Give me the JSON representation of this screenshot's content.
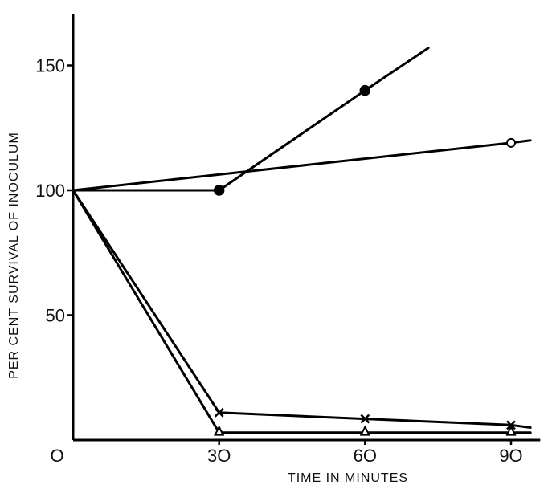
{
  "chart_data": {
    "type": "line",
    "xlabel": "TIME IN MINUTES",
    "ylabel": "PER CENT SURVIVAL OF INOCULUM",
    "xlim": [
      0,
      96
    ],
    "ylim": [
      0,
      170
    ],
    "x_ticks": [
      0,
      30,
      60,
      90
    ],
    "x_tick_labels": [
      "O",
      "3O",
      "6O",
      "9O"
    ],
    "y_ticks": [
      50,
      100,
      150
    ],
    "y_tick_labels": [
      "50",
      "100",
      "150"
    ],
    "grid": false,
    "legend": "none",
    "series": [
      {
        "marker": "filled-circle",
        "x": [
          0,
          30,
          60,
          73
        ],
        "y": [
          100,
          100,
          140,
          157
        ],
        "marked_x": [
          30,
          60
        ]
      },
      {
        "marker": "open-circle",
        "x": [
          0,
          90,
          94
        ],
        "y": [
          100,
          119,
          120
        ],
        "marked_x": [
          90
        ]
      },
      {
        "marker": "cross",
        "x": [
          0,
          30,
          60,
          90,
          94
        ],
        "y": [
          100,
          11,
          8.5,
          6,
          5
        ],
        "marked_x": [
          30,
          60,
          90
        ]
      },
      {
        "marker": "open-triangle",
        "x": [
          0,
          30,
          60,
          90,
          94
        ],
        "y": [
          100,
          3,
          3,
          3,
          3
        ],
        "marked_x": [
          30,
          60,
          90
        ]
      }
    ]
  }
}
